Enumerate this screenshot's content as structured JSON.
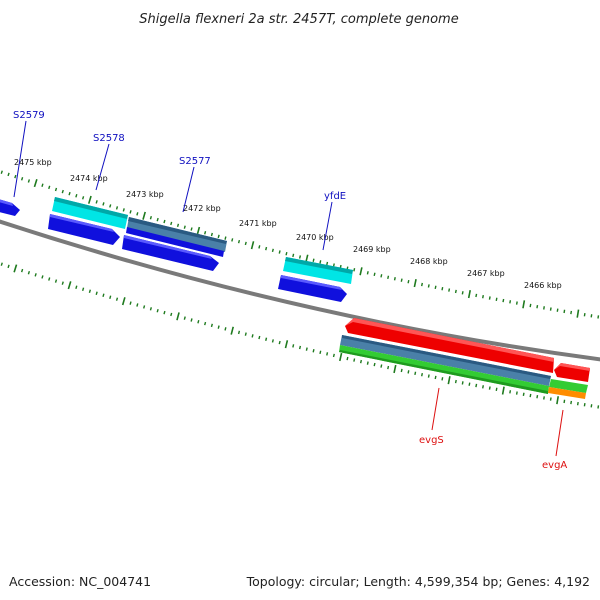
{
  "title": "Shigella flexneri 2a str. 2457T, complete genome",
  "footer": {
    "accession": "Accession: NC_004741",
    "topology": "Topology: circular; Length: 4,599,354 bp; Genes: 4,192"
  },
  "ruler": [
    "2475 kbp",
    "2474 kbp",
    "2473 kbp",
    "2472 kbp",
    "2471 kbp",
    "2470 kbp",
    "2469 kbp",
    "2468 kbp",
    "2467 kbp",
    "2466 kbp"
  ],
  "genes": {
    "S2579": "S2579",
    "S2578": "S2578",
    "S2577": "S2577",
    "yfdE": "yfdE",
    "evgS": "evgS",
    "evgA": "evgA"
  },
  "colors": {
    "backbone": "#7a7a7a",
    "tick": "#1e7a1e",
    "forward_label": "#1010c0",
    "reverse_label": "#dd1111",
    "blue_cds": "#1010dd",
    "cyan_gene": "#00e5e5",
    "steel_gene": "#4a80a8",
    "red_cds": "#ee0000",
    "green_gene": "#33cc33",
    "orange_gene": "#ff8c00"
  }
}
